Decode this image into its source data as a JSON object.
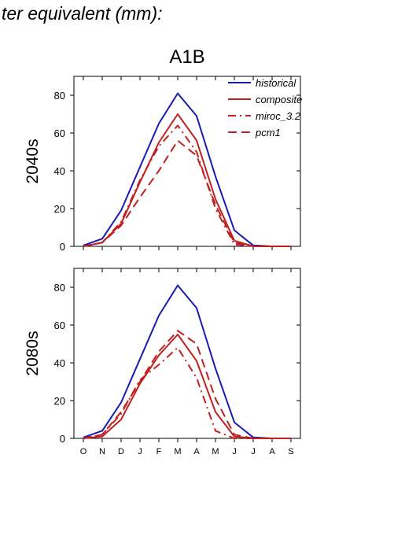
{
  "header": {
    "title": "ter equivalent (mm):"
  },
  "panel_title": "A1B",
  "chart_data": [
    {
      "type": "line",
      "row_label": "2040s",
      "categories": [
        "O",
        "N",
        "D",
        "J",
        "F",
        "M",
        "A",
        "M",
        "J",
        "J",
        "A",
        "S"
      ],
      "ylim": [
        0,
        90
      ],
      "yticks": [
        0,
        20,
        40,
        60,
        80
      ],
      "legend_position": "top-right",
      "series": [
        {
          "name": "historical",
          "color": "#1a1ab4",
          "dash": "solid",
          "values": [
            0.5,
            4,
            19,
            42,
            65,
            81,
            69,
            37,
            8.5,
            0.5,
            0,
            0
          ]
        },
        {
          "name": "composite",
          "color": "#c0201f",
          "dash": "solid",
          "values": [
            0,
            2,
            12,
            34,
            55,
            70,
            56,
            25,
            3,
            0,
            0,
            0
          ]
        },
        {
          "name": "miroc_3.2",
          "color": "#c0201f",
          "dash": "dashdot",
          "values": [
            0,
            2,
            13,
            35,
            53,
            64,
            50,
            20,
            1,
            0,
            0,
            0
          ]
        },
        {
          "name": "pcm1",
          "color": "#c0201f",
          "dash": "dash",
          "values": [
            0,
            2,
            11,
            26,
            40,
            56,
            48,
            22,
            2,
            0,
            0,
            0
          ]
        }
      ]
    },
    {
      "type": "line",
      "row_label": "2080s",
      "categories": [
        "O",
        "N",
        "D",
        "J",
        "F",
        "M",
        "A",
        "M",
        "J",
        "J",
        "A",
        "S"
      ],
      "ylim": [
        0,
        90
      ],
      "yticks": [
        0,
        20,
        40,
        60,
        80
      ],
      "series": [
        {
          "name": "historical",
          "color": "#1a1ab4",
          "dash": "solid",
          "values": [
            0.5,
            4,
            19,
            42,
            65,
            81,
            69,
            37,
            8.5,
            0.5,
            0,
            0
          ]
        },
        {
          "name": "composite",
          "color": "#c0201f",
          "dash": "solid",
          "values": [
            0,
            1,
            10,
            29,
            44,
            55,
            41,
            14,
            1,
            0,
            0,
            0
          ]
        },
        {
          "name": "miroc_3.2",
          "color": "#c0201f",
          "dash": "dashdot",
          "values": [
            0,
            2,
            13,
            31,
            39,
            48,
            32,
            4,
            0,
            0,
            0,
            0
          ]
        },
        {
          "name": "pcm1",
          "color": "#c0201f",
          "dash": "dash",
          "values": [
            0,
            2,
            14,
            30,
            46,
            57,
            50,
            21,
            2,
            0,
            0,
            0
          ]
        }
      ]
    }
  ]
}
